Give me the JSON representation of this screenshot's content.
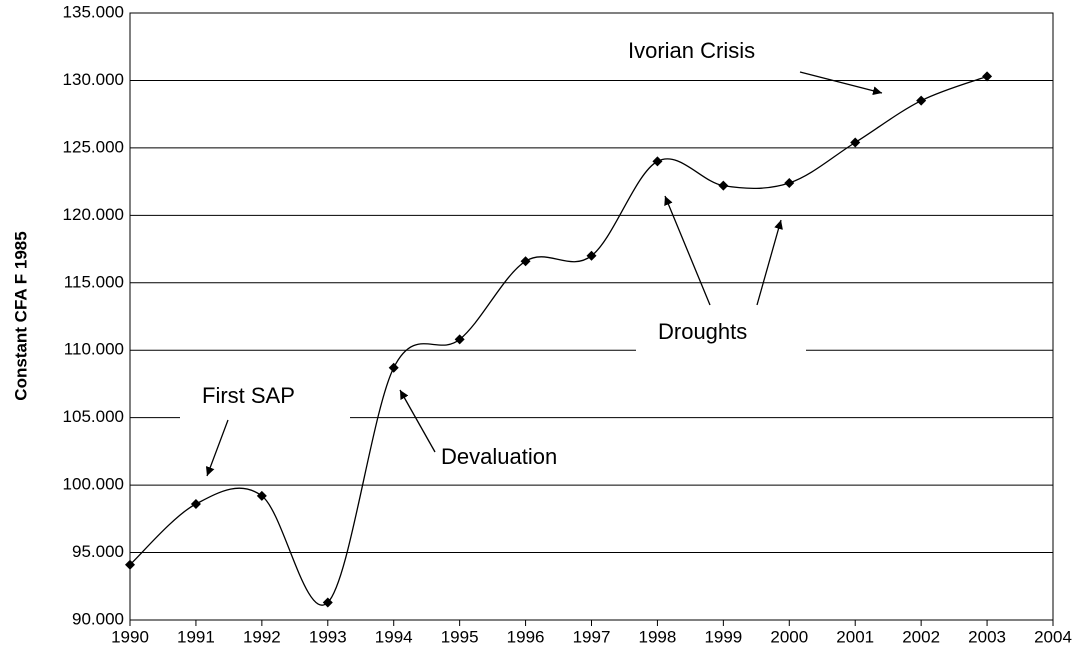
{
  "chart_data": {
    "type": "line",
    "y_label": "Constant CFA F 1985",
    "x": [
      1990,
      1991,
      1992,
      1993,
      1994,
      1995,
      1996,
      1997,
      1998,
      1999,
      2000,
      2001,
      2002,
      2003
    ],
    "series": [
      {
        "color": "#000000",
        "values": [
          94100,
          98600,
          99200,
          91300,
          108700,
          110800,
          116600,
          117000,
          124000,
          122200,
          122400,
          125400,
          128500,
          130300
        ]
      }
    ],
    "xlim": [
      1990,
      2004
    ],
    "xticks": [
      1990,
      1991,
      1992,
      1993,
      1994,
      1995,
      1996,
      1997,
      1998,
      1999,
      2000,
      2001,
      2002,
      2003,
      2004
    ],
    "ylim": [
      90000,
      135000
    ],
    "yticks": [
      {
        "value": 90000,
        "label": "90.000"
      },
      {
        "value": 95000,
        "label": "95.000"
      },
      {
        "value": 100000,
        "label": "100.000"
      },
      {
        "value": 105000,
        "label": "105.000"
      },
      {
        "value": 110000,
        "label": "110.000"
      },
      {
        "value": 115000,
        "label": "115.000"
      },
      {
        "value": 120000,
        "label": "120.000"
      },
      {
        "value": 125000,
        "label": "125.000"
      },
      {
        "value": 130000,
        "label": "130.000"
      },
      {
        "value": 135000,
        "label": "135.000"
      }
    ],
    "grid": true,
    "annotations": [
      "Ivorian Crisis",
      "Droughts",
      "First SAP",
      "Devaluation"
    ]
  }
}
